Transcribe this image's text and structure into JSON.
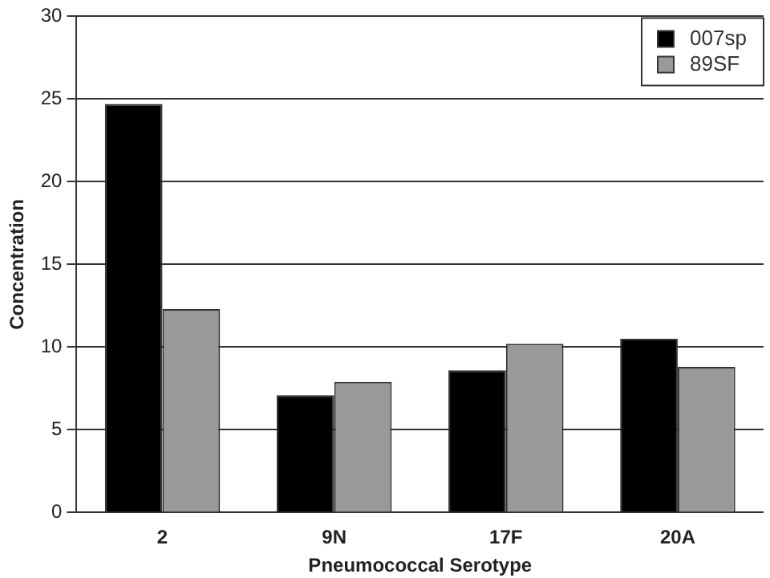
{
  "chart_data": {
    "type": "bar",
    "xlabel": "Pneumococcal Serotype",
    "ylabel": "Concentration",
    "categories": [
      "2",
      "9N",
      "17F",
      "20A"
    ],
    "series": [
      {
        "name": "007sp",
        "color": "#000000",
        "values": [
          24.7,
          7.1,
          8.6,
          10.5
        ]
      },
      {
        "name": "89SF",
        "color": "#999999",
        "values": [
          12.3,
          7.9,
          10.2,
          8.8
        ]
      }
    ],
    "ylim": [
      0,
      30
    ],
    "yticks": [
      0,
      5,
      10,
      15,
      20,
      25,
      30
    ],
    "grid": "y",
    "legend": "top right"
  }
}
